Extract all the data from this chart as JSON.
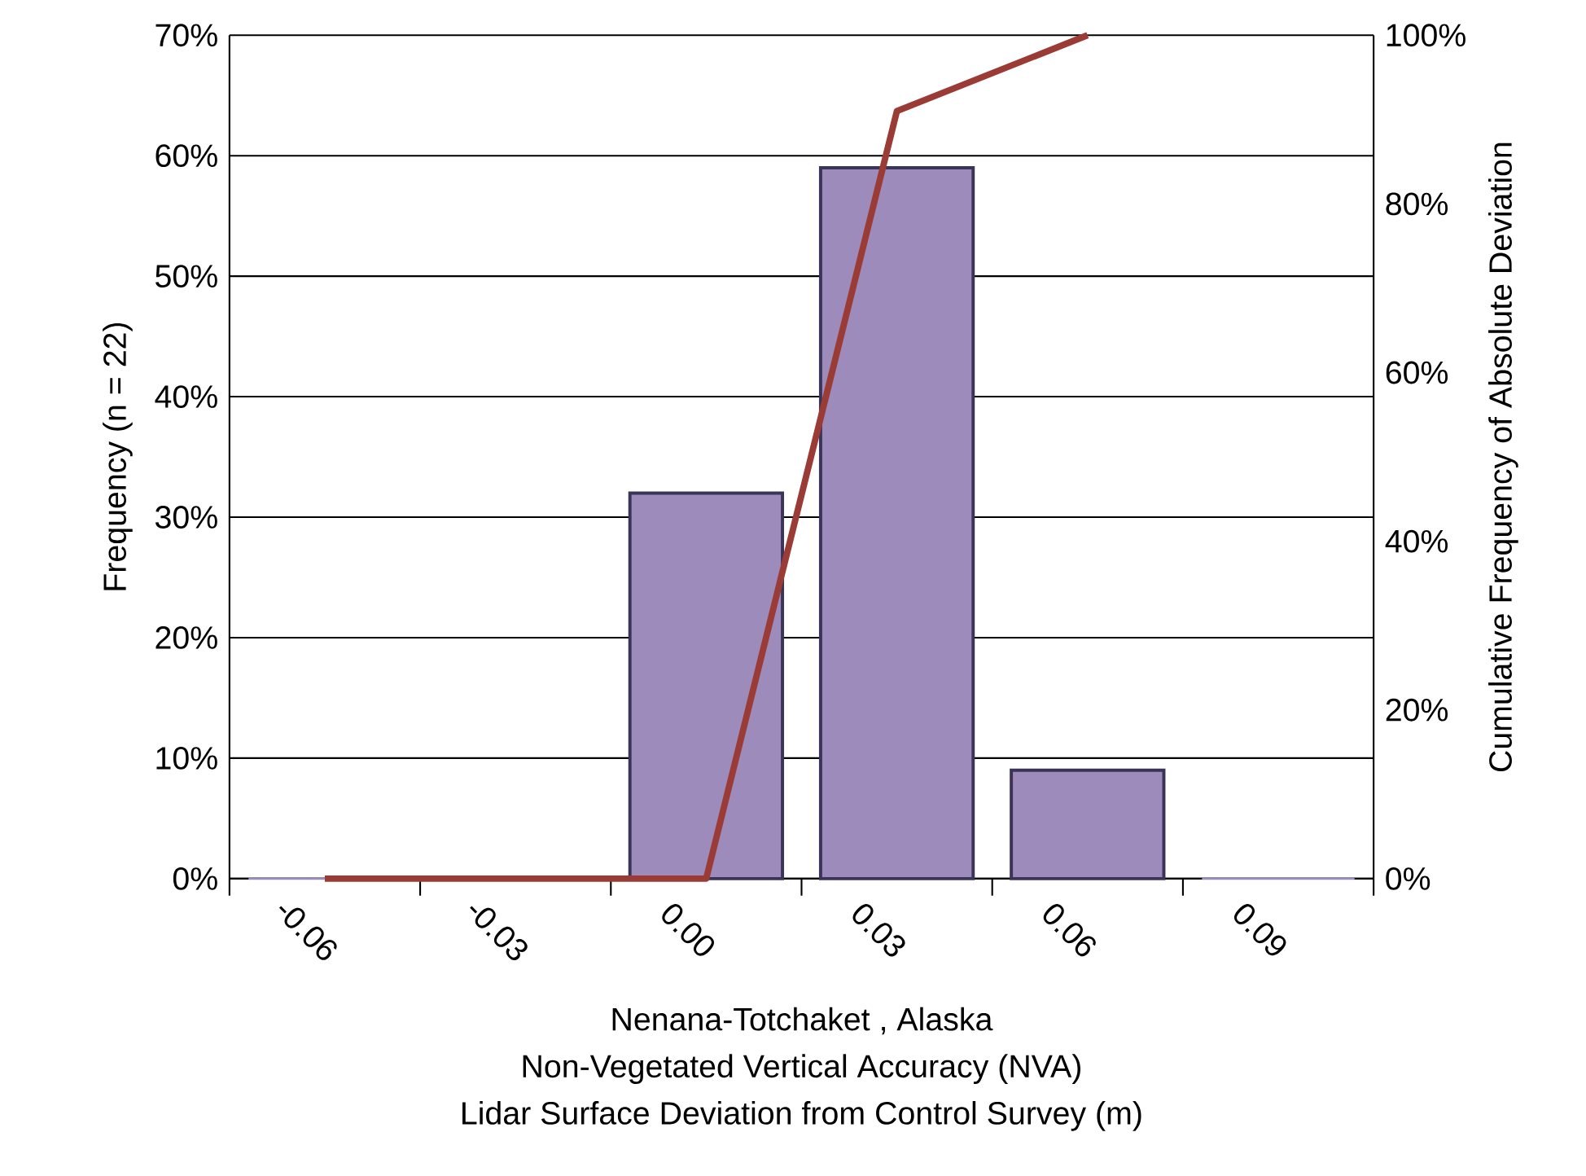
{
  "chart_data": {
    "type": "bar",
    "xlabel": "Lidar Surface Deviation from Control Survey (m)",
    "ylabel": "Frequency (n = 22)",
    "y2label": "Cumulative Frequency of Absolute Deviation",
    "annotations": [
      "Nenana-Totchaket , Alaska",
      "Non-Vegetated Vertical Accuracy (NVA)"
    ],
    "categories": [
      "-0.06",
      "-0.03",
      "0.00",
      "0.03",
      "0.06",
      "0.09"
    ],
    "series": [
      {
        "color": "#9d8cbb",
        "values": [
          0,
          0,
          32,
          59,
          9,
          0
        ]
      },
      {
        "type": "line",
        "axis": "y2",
        "color": "#9b3b35",
        "values": [
          0,
          0,
          0,
          91,
          100,
          null
        ]
      }
    ],
    "ylim": [
      0,
      70
    ],
    "yticks": [
      {
        "value": 0,
        "label": "0%"
      },
      {
        "value": 10,
        "label": "10%"
      },
      {
        "value": 20,
        "label": "20%"
      },
      {
        "value": 30,
        "label": "30%"
      },
      {
        "value": 40,
        "label": "40%"
      },
      {
        "value": 50,
        "label": "50%"
      },
      {
        "value": 60,
        "label": "60%"
      },
      {
        "value": 70,
        "label": "70%"
      }
    ],
    "y2lim": [
      0,
      100
    ],
    "y2ticks": [
      {
        "value": 0,
        "label": "0%"
      },
      {
        "value": 20,
        "label": "20%"
      },
      {
        "value": 40,
        "label": "40%"
      },
      {
        "value": 60,
        "label": "60%"
      },
      {
        "value": 80,
        "label": "80%"
      },
      {
        "value": 100,
        "label": "100%"
      }
    ],
    "grid": "y",
    "legend": false,
    "marker": "none",
    "line_style": "solid"
  }
}
